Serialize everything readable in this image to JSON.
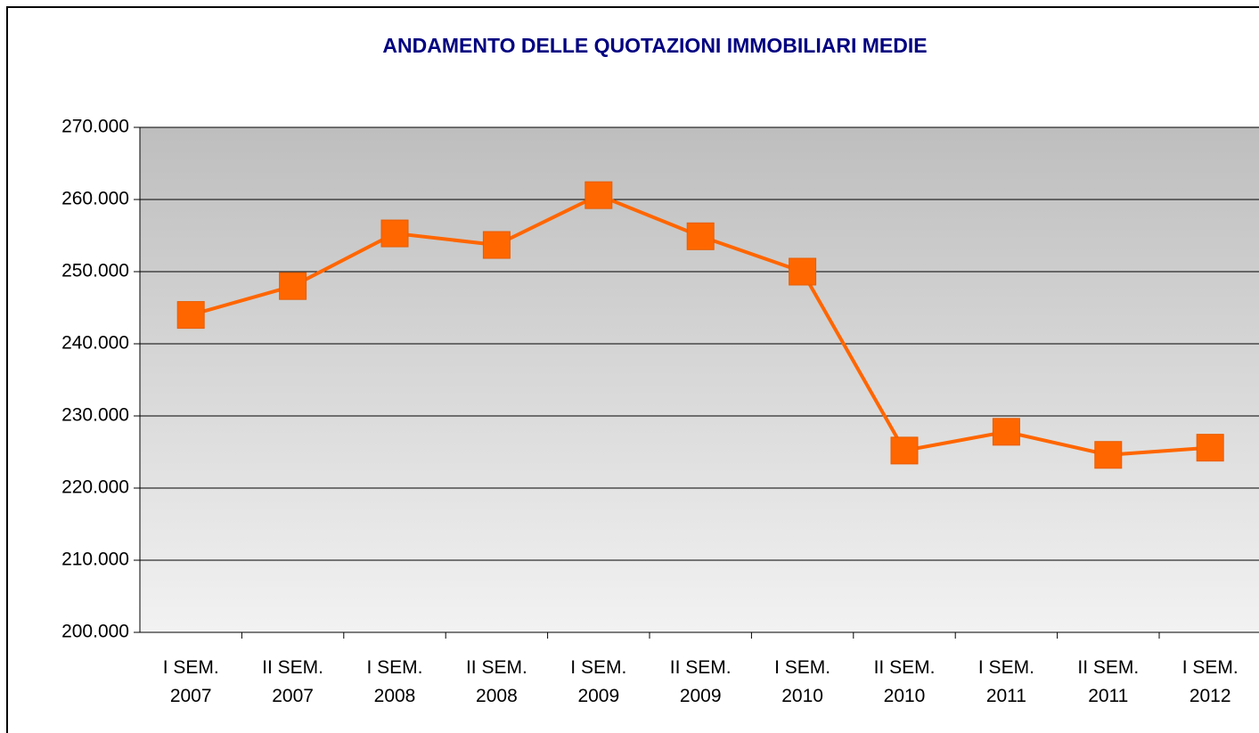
{
  "chart_data": {
    "type": "line",
    "title": "ANDAMENTO DELLE QUOTAZIONI IMMOBILIARI MEDIE",
    "categories": [
      "I SEM. 2007",
      "II SEM. 2007",
      "I SEM. 2008",
      "II SEM. 2008",
      "I SEM. 2009",
      "II SEM. 2009",
      "I SEM. 2010",
      "II SEM. 2010",
      "I SEM. 2011",
      "II SEM. 2011",
      "I SEM. 2012"
    ],
    "series": [
      {
        "color": "#ff6600",
        "values": [
          244000,
          248000,
          255300,
          253700,
          260600,
          254900,
          250000,
          225200,
          227800,
          224600,
          225600
        ]
      }
    ],
    "ylim": [
      200000,
      270000
    ],
    "yticks": [
      {
        "value": 200000,
        "label": "200.000"
      },
      {
        "value": 210000,
        "label": "210.000"
      },
      {
        "value": 220000,
        "label": "220.000"
      },
      {
        "value": 230000,
        "label": "230.000"
      },
      {
        "value": 240000,
        "label": "240.000"
      },
      {
        "value": 250000,
        "label": "250.000"
      },
      {
        "value": 260000,
        "label": "260.000"
      },
      {
        "value": 270000,
        "label": "270.000"
      }
    ],
    "grid": true
  }
}
